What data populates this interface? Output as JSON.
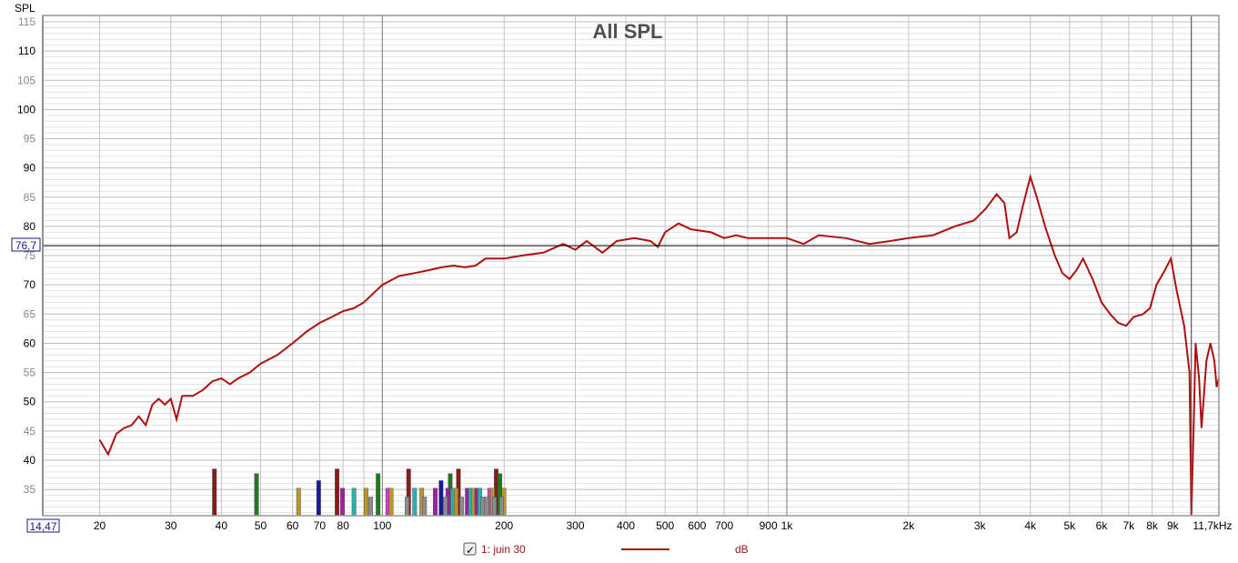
{
  "chart_data": {
    "type": "line",
    "title": "All SPL",
    "ylabel": "SPL",
    "xunit": "kHz",
    "xscale": "log",
    "xlim": [
      14.47,
      11700
    ],
    "ylim": [
      30.5,
      116
    ],
    "grid": true,
    "y_tick_labels": [
      {
        "v": 115,
        "major": false
      },
      {
        "v": 110,
        "major": true
      },
      {
        "v": 105,
        "major": false
      },
      {
        "v": 100,
        "major": true
      },
      {
        "v": 95,
        "major": false
      },
      {
        "v": 90,
        "major": true
      },
      {
        "v": 85,
        "major": false
      },
      {
        "v": 80,
        "major": true
      },
      {
        "v": 75,
        "major": false
      },
      {
        "v": 70,
        "major": true
      },
      {
        "v": 65,
        "major": false
      },
      {
        "v": 60,
        "major": true
      },
      {
        "v": 55,
        "major": false
      },
      {
        "v": 50,
        "major": true
      },
      {
        "v": 45,
        "major": false
      },
      {
        "v": 40,
        "major": true
      },
      {
        "v": 35,
        "major": false
      }
    ],
    "x_tick_labels": [
      {
        "f": 20,
        "t": "20"
      },
      {
        "f": 30,
        "t": "30"
      },
      {
        "f": 40,
        "t": "40"
      },
      {
        "f": 50,
        "t": "50"
      },
      {
        "f": 60,
        "t": "60"
      },
      {
        "f": 70,
        "t": "70"
      },
      {
        "f": 80,
        "t": "80"
      },
      {
        "f": 100,
        "t": "100"
      },
      {
        "f": 200,
        "t": "200"
      },
      {
        "f": 300,
        "t": "300"
      },
      {
        "f": 400,
        "t": "400"
      },
      {
        "f": 500,
        "t": "500"
      },
      {
        "f": 600,
        "t": "600"
      },
      {
        "f": 700,
        "t": "700"
      },
      {
        "f": 900,
        "t": "900"
      },
      {
        "f": 1000,
        "t": "1k"
      },
      {
        "f": 2000,
        "t": "2k"
      },
      {
        "f": 3000,
        "t": "3k"
      },
      {
        "f": 4000,
        "t": "4k"
      },
      {
        "f": 5000,
        "t": "5k"
      },
      {
        "f": 6000,
        "t": "6k"
      },
      {
        "f": 7000,
        "t": "7k"
      },
      {
        "f": 8000,
        "t": "8k"
      },
      {
        "f": 9000,
        "t": "9k"
      },
      {
        "f": 11700,
        "t": "11,7kHz"
      }
    ],
    "cursor": {
      "y_value": "76,7",
      "x_value": "14,47",
      "y": 76.7,
      "x_freq": 14.47,
      "v_line_freq": 10000
    },
    "series": [
      {
        "name": "1: juin 30",
        "unit": "dB",
        "color": "#b01010",
        "points": [
          [
            20,
            43.5
          ],
          [
            21,
            41
          ],
          [
            22,
            44.5
          ],
          [
            23,
            45.5
          ],
          [
            24,
            46
          ],
          [
            25,
            47.5
          ],
          [
            26,
            46
          ],
          [
            27,
            49.5
          ],
          [
            28,
            50.5
          ],
          [
            29,
            49.5
          ],
          [
            30,
            50.5
          ],
          [
            31,
            47
          ],
          [
            32,
            51
          ],
          [
            34,
            51
          ],
          [
            36,
            52
          ],
          [
            38,
            53.5
          ],
          [
            40,
            54
          ],
          [
            42,
            53
          ],
          [
            44,
            54
          ],
          [
            47,
            55
          ],
          [
            50,
            56.5
          ],
          [
            55,
            58
          ],
          [
            60,
            60
          ],
          [
            65,
            62
          ],
          [
            70,
            63.5
          ],
          [
            75,
            64.5
          ],
          [
            80,
            65.5
          ],
          [
            85,
            66
          ],
          [
            90,
            67
          ],
          [
            100,
            70
          ],
          [
            110,
            71.5
          ],
          [
            120,
            72
          ],
          [
            130,
            72.5
          ],
          [
            140,
            73
          ],
          [
            150,
            73.3
          ],
          [
            160,
            73
          ],
          [
            170,
            73.3
          ],
          [
            180,
            74.5
          ],
          [
            200,
            74.5
          ],
          [
            220,
            75
          ],
          [
            250,
            75.5
          ],
          [
            280,
            77
          ],
          [
            300,
            76
          ],
          [
            320,
            77.5
          ],
          [
            350,
            75.5
          ],
          [
            380,
            77.5
          ],
          [
            420,
            78
          ],
          [
            460,
            77.5
          ],
          [
            480,
            76.5
          ],
          [
            500,
            79
          ],
          [
            540,
            80.5
          ],
          [
            580,
            79.5
          ],
          [
            650,
            79
          ],
          [
            700,
            78
          ],
          [
            750,
            78.5
          ],
          [
            800,
            78
          ],
          [
            900,
            78
          ],
          [
            1000,
            78
          ],
          [
            1100,
            77
          ],
          [
            1200,
            78.5
          ],
          [
            1400,
            78
          ],
          [
            1600,
            77
          ],
          [
            1800,
            77.5
          ],
          [
            2000,
            78
          ],
          [
            2300,
            78.5
          ],
          [
            2600,
            80
          ],
          [
            2900,
            81
          ],
          [
            3100,
            83
          ],
          [
            3300,
            85.5
          ],
          [
            3450,
            84
          ],
          [
            3550,
            78
          ],
          [
            3700,
            79
          ],
          [
            3850,
            84
          ],
          [
            4000,
            88.5
          ],
          [
            4150,
            85
          ],
          [
            4350,
            80
          ],
          [
            4600,
            75
          ],
          [
            4800,
            72
          ],
          [
            5000,
            71
          ],
          [
            5200,
            72.5
          ],
          [
            5400,
            74.5
          ],
          [
            5700,
            71
          ],
          [
            6000,
            67
          ],
          [
            6300,
            65
          ],
          [
            6600,
            63.5
          ],
          [
            6900,
            63
          ],
          [
            7200,
            64.5
          ],
          [
            7600,
            65
          ],
          [
            7900,
            66
          ],
          [
            8200,
            70
          ],
          [
            8600,
            72.5
          ],
          [
            8900,
            74.5
          ],
          [
            9200,
            69
          ],
          [
            9600,
            63
          ],
          [
            9900,
            55
          ],
          [
            10000,
            30.5
          ],
          [
            10150,
            48
          ],
          [
            10250,
            60
          ],
          [
            10450,
            54
          ],
          [
            10600,
            45.5
          ],
          [
            10900,
            57
          ],
          [
            11150,
            60
          ],
          [
            11400,
            57
          ],
          [
            11550,
            52.5
          ],
          [
            11700,
            54
          ]
        ]
      }
    ],
    "mode_bars": [
      {
        "f": 38.4,
        "v": 38.5,
        "c": "#8b1a1a"
      },
      {
        "f": 48.8,
        "v": 37.7,
        "c": "#1f7a1f"
      },
      {
        "f": 62,
        "v": 35.2,
        "c": "#b8962e"
      },
      {
        "f": 69.5,
        "v": 36.5,
        "c": "#1a1a9a"
      },
      {
        "f": 77.2,
        "v": 38.5,
        "c": "#8b1a1a"
      },
      {
        "f": 79.6,
        "v": 35.2,
        "c": "#a020a0"
      },
      {
        "f": 85,
        "v": 35.2,
        "c": "#2ab0b0"
      },
      {
        "f": 91,
        "v": 35.2,
        "c": "#b8962e"
      },
      {
        "f": 93.5,
        "v": 33.7,
        "c": "#8c8c8c"
      },
      {
        "f": 97.5,
        "v": 37.7,
        "c": "#1f7a1f"
      },
      {
        "f": 103,
        "v": 35.2,
        "c": "#d040c0"
      },
      {
        "f": 105,
        "v": 35.2,
        "c": "#b8962e"
      },
      {
        "f": 115,
        "v": 33.7,
        "c": "#8c8c8c"
      },
      {
        "f": 116,
        "v": 38.5,
        "c": "#8b1a1a"
      },
      {
        "f": 120,
        "v": 35.2,
        "c": "#2ab0b0"
      },
      {
        "f": 125,
        "v": 35.2,
        "c": "#b8962e"
      },
      {
        "f": 127,
        "v": 33.7,
        "c": "#8c8c8c"
      },
      {
        "f": 135,
        "v": 35.2,
        "c": "#a020a0"
      },
      {
        "f": 139.5,
        "v": 36.5,
        "c": "#1a1a9a"
      },
      {
        "f": 143,
        "v": 33.7,
        "c": "#8c8c8c"
      },
      {
        "f": 145,
        "v": 35.2,
        "c": "#a020a0"
      },
      {
        "f": 147,
        "v": 37.7,
        "c": "#1f7a1f"
      },
      {
        "f": 149,
        "v": 35.2,
        "c": "#2ab0b0"
      },
      {
        "f": 152,
        "v": 35.2,
        "c": "#b8962e"
      },
      {
        "f": 154,
        "v": 38.5,
        "c": "#8b1a1a"
      },
      {
        "f": 157,
        "v": 33.7,
        "c": "#8c8c8c"
      },
      {
        "f": 162,
        "v": 35.2,
        "c": "#a020a0"
      },
      {
        "f": 165,
        "v": 35.2,
        "c": "#2ab0b0"
      },
      {
        "f": 168,
        "v": 35.2,
        "c": "#b8962e"
      },
      {
        "f": 171,
        "v": 35.2,
        "c": "#a020a0"
      },
      {
        "f": 174,
        "v": 35.2,
        "c": "#2ab0b0"
      },
      {
        "f": 177,
        "v": 33.7,
        "c": "#8c8c8c"
      },
      {
        "f": 181,
        "v": 33.7,
        "c": "#8c8c8c"
      },
      {
        "f": 184,
        "v": 35.2,
        "c": "#d040c0"
      },
      {
        "f": 187,
        "v": 35.2,
        "c": "#b8962e"
      },
      {
        "f": 189,
        "v": 33.7,
        "c": "#8c8c8c"
      },
      {
        "f": 191,
        "v": 38.5,
        "c": "#8b1a1a"
      },
      {
        "f": 195,
        "v": 37.7,
        "c": "#1f7a1f"
      },
      {
        "f": 197,
        "v": 33.7,
        "c": "#8c8c8c"
      },
      {
        "f": 199.5,
        "v": 35.2,
        "c": "#b8962e"
      }
    ]
  },
  "legend": {
    "checked": true,
    "label": "1: juin 30",
    "unit": "dB",
    "color": "#b01010"
  }
}
